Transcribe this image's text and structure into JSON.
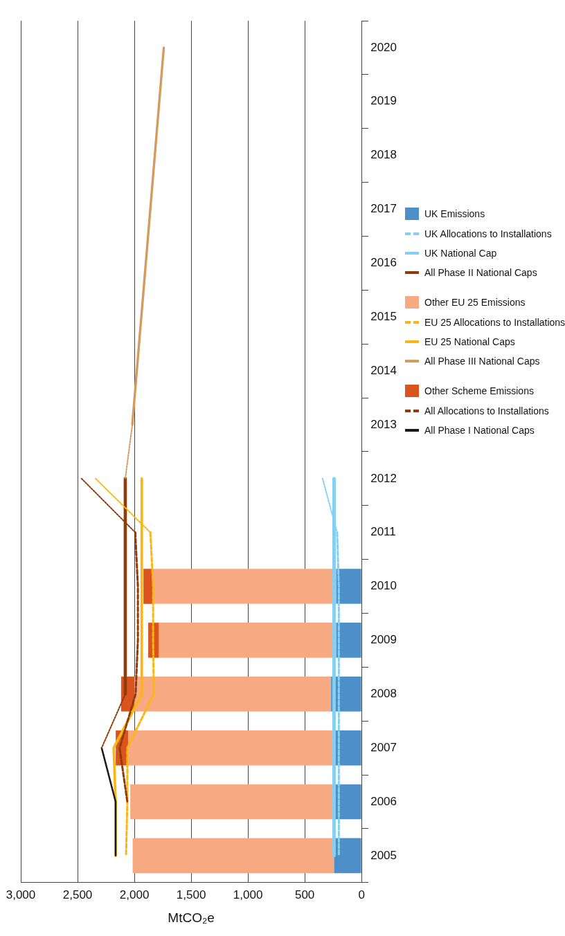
{
  "chart_data": {
    "type": "bar",
    "orientation": "horizontal",
    "xlabel": "MtCO₂e",
    "stacked": true,
    "grid": "x",
    "legend": "right",
    "marker": "none",
    "categories": [
      "2020",
      "2019",
      "2018",
      "2017",
      "2016",
      "2015",
      "2014",
      "2013",
      "2012",
      "2011",
      "2010",
      "2009",
      "2008",
      "2007",
      "2006",
      "2005"
    ],
    "xlim": [
      3000,
      0
    ],
    "xticks": [
      {
        "value": 0,
        "label": "0"
      },
      {
        "value": 500,
        "label": "500"
      },
      {
        "value": 1000,
        "label": "1,000"
      },
      {
        "value": 1500,
        "label": "1,500"
      },
      {
        "value": 2000,
        "label": "2,000"
      },
      {
        "value": 2500,
        "label": "2,500"
      },
      {
        "value": 3000,
        "label": "3,000"
      }
    ],
    "series": [
      {
        "name": "UK Emissions",
        "color": "#4d8fc9",
        "values": [
          null,
          null,
          null,
          null,
          null,
          null,
          null,
          null,
          null,
          null,
          222,
          222,
          268,
          256,
          251,
          242
        ]
      },
      {
        "name": "UK Allocations to Installations",
        "type": "line",
        "line_style": "dashed",
        "color": "#86cff2",
        "values": [
          null,
          null,
          null,
          null,
          null,
          null,
          null,
          null,
          null,
          215,
          200,
          200,
          200,
          200,
          200,
          200
        ]
      },
      {
        "name": "UK National Cap",
        "type": "line",
        "line_style": "solid",
        "color": "#86cff2",
        "values": [
          null,
          null,
          null,
          null,
          null,
          null,
          null,
          null,
          242,
          242,
          242,
          242,
          242,
          242,
          242,
          242
        ]
      },
      {
        "name": "All Phase II National Caps",
        "type": "line",
        "line_style": "solid",
        "color": "#8f3b0b",
        "values": [
          null,
          null,
          null,
          null,
          null,
          null,
          null,
          null,
          2080,
          2080,
          2080,
          2080,
          2080,
          null,
          null,
          null
        ]
      },
      {
        "name": "Other EU 25 Emissions",
        "color": "#f7a982",
        "values": [
          null,
          null,
          null,
          null,
          null,
          null,
          null,
          null,
          null,
          null,
          1613,
          1561,
          1732,
          1797,
          1785,
          1773
        ]
      },
      {
        "name": "EU 25 Allocations to Installations",
        "type": "line",
        "line_style": "dashed",
        "color": "#fbb616",
        "values": [
          null,
          null,
          null,
          null,
          null,
          null,
          null,
          null,
          null,
          1859,
          1835,
          1835,
          1829,
          2062,
          2062,
          2073
        ]
      },
      {
        "name": "EU 25 National Caps",
        "type": "line",
        "line_style": "solid",
        "color": "#fbb616",
        "values": [
          null,
          null,
          null,
          null,
          null,
          null,
          null,
          null,
          1935,
          1935,
          1935,
          1935,
          1935,
          2182,
          2165,
          2165
        ]
      },
      {
        "name": "All Phase III National Caps",
        "type": "line",
        "line_style": "solid",
        "color": "#d49a5e",
        "values": [
          1741,
          null,
          null,
          null,
          null,
          null,
          null,
          2018,
          null,
          null,
          null,
          null,
          null,
          null,
          null,
          null
        ]
      },
      {
        "name": "Other Scheme Emissions",
        "color": "#d9541e",
        "values": [
          null,
          null,
          null,
          null,
          null,
          null,
          null,
          null,
          null,
          null,
          85,
          95,
          117,
          111,
          null,
          null
        ]
      },
      {
        "name": "All Allocations to Installations",
        "type": "line",
        "line_style": "dashed",
        "color": "#8f3b0b",
        "values": [
          null,
          null,
          null,
          null,
          null,
          null,
          null,
          null,
          null,
          1992,
          1969,
          1969,
          1989,
          2130,
          2062,
          null
        ]
      },
      {
        "name": "All Phase I National Caps",
        "type": "line",
        "line_style": "solid",
        "color": "#1a1a1a",
        "values": [
          null,
          null,
          null,
          null,
          null,
          null,
          null,
          null,
          null,
          null,
          null,
          null,
          null,
          2288,
          2165,
          2165
        ]
      },
      {
        "type": "line",
        "line_style": "dotted",
        "color": "#86cff2",
        "values": [
          null,
          null,
          null,
          null,
          null,
          null,
          null,
          null,
          343,
          215,
          null,
          null,
          null,
          null,
          null,
          null
        ]
      },
      {
        "type": "line",
        "line_style": "dotted",
        "color": "#fbb616",
        "values": [
          null,
          null,
          null,
          null,
          null,
          null,
          null,
          null,
          2341,
          1859,
          null,
          null,
          null,
          null,
          null,
          null
        ]
      },
      {
        "type": "line",
        "line_style": "dotted",
        "color": "#8f3b0b",
        "values": [
          null,
          null,
          null,
          null,
          null,
          null,
          null,
          null,
          2465,
          1992,
          null,
          null,
          null,
          null,
          null,
          null
        ]
      },
      {
        "type": "line",
        "line_style": "dotted",
        "color": "#8f3b0b",
        "values": [
          null,
          null,
          null,
          null,
          null,
          null,
          null,
          null,
          null,
          null,
          null,
          null,
          2080,
          2288,
          null,
          null
        ]
      },
      {
        "type": "line",
        "line_style": "dotted",
        "color": "#d49a5e",
        "values": [
          null,
          null,
          null,
          null,
          null,
          null,
          null,
          2018,
          2080,
          null,
          null,
          null,
          null,
          null,
          null,
          null
        ]
      }
    ]
  }
}
